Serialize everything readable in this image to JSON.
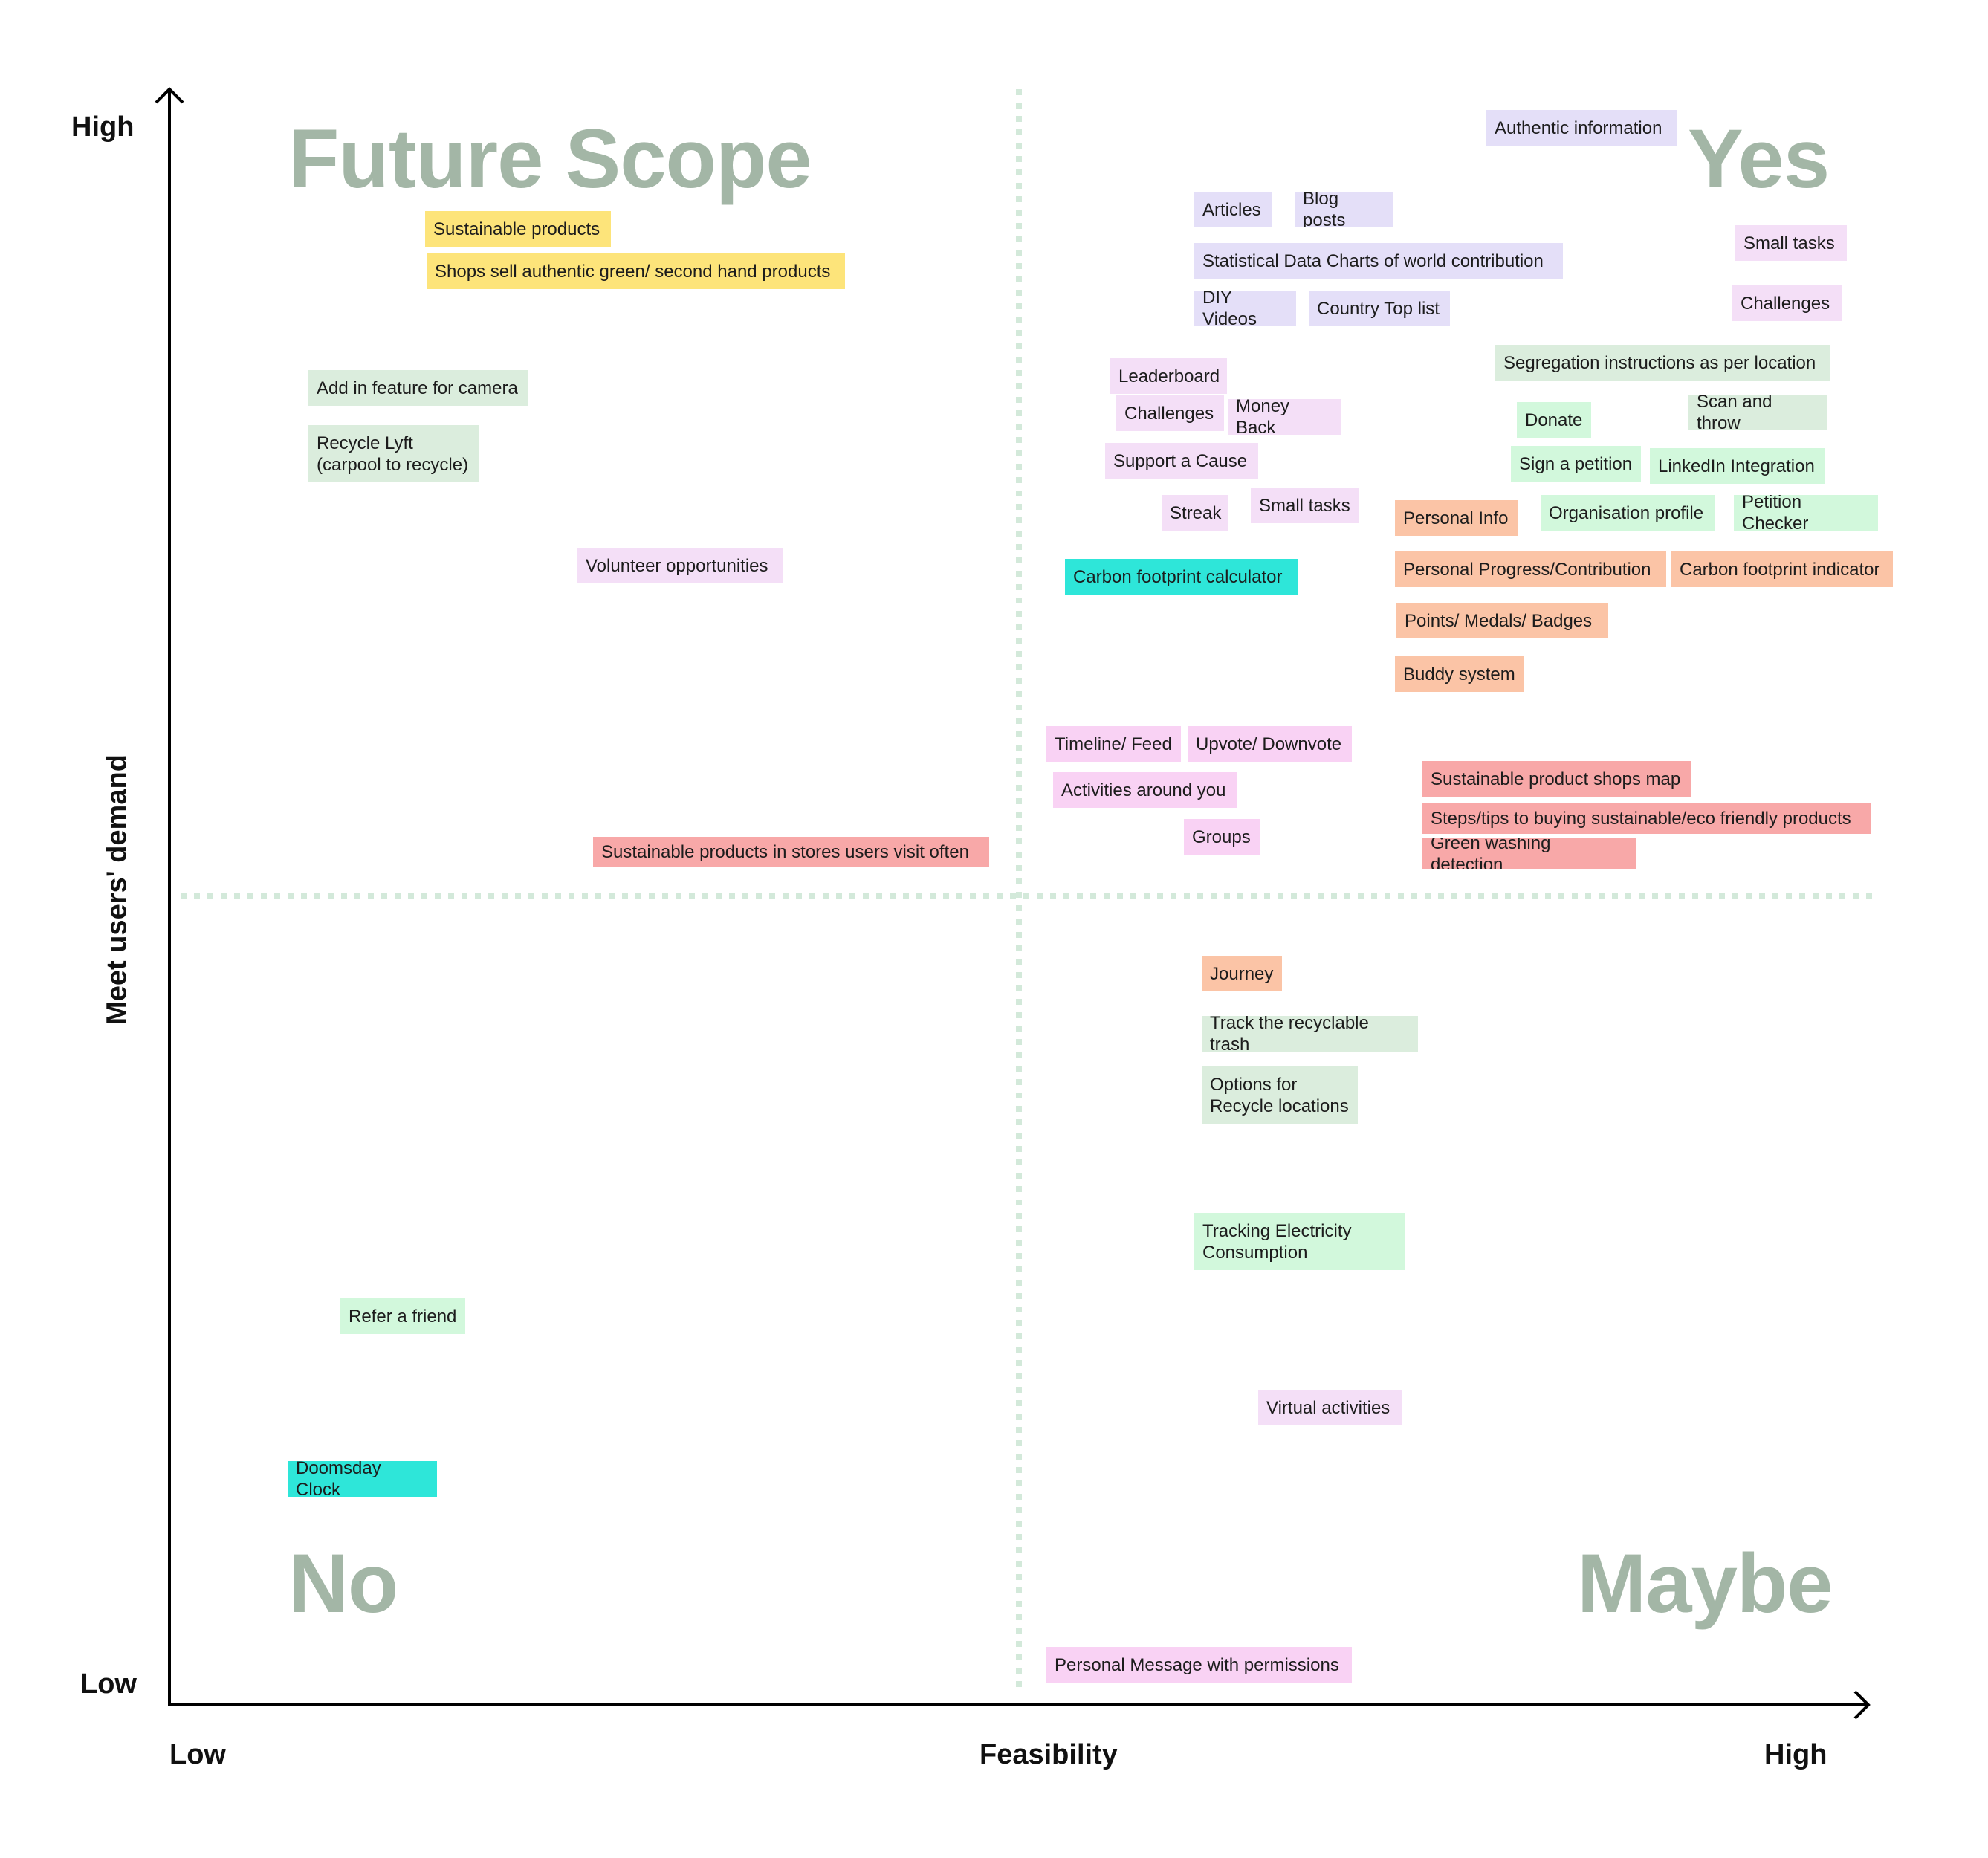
{
  "quadrants": {
    "top_left": "Future Scope",
    "top_right": "Yes",
    "bottom_left": "No",
    "bottom_right": "Maybe"
  },
  "axes": {
    "y_title": "Meet users' demand",
    "y_high": "High",
    "y_low": "Low",
    "x_title": "Feasibility",
    "x_low": "Low",
    "x_high": "High"
  },
  "colors": {
    "yellow": "#fde47a",
    "sage": "#dbeddd",
    "lavender": "#e4dff8",
    "lilac": "#f4dff7",
    "cyan": "#2ee6d9",
    "salmon": "#f8a8a8",
    "peach": "#fbc4a6",
    "mint": "#d2f8dc",
    "pink": "#f9d2f4",
    "quadrant_text": "#a3b6a6",
    "divider": "#d3e9da"
  },
  "notes": [
    {
      "text": "Sustainable products",
      "color": "yellow"
    },
    {
      "text": "Shops sell authentic green/ second hand products",
      "color": "yellow"
    },
    {
      "text": "Add in feature for camera",
      "color": "sage"
    },
    {
      "text": "Recycle Lyft\n(carpool to recycle)",
      "color": "sage"
    },
    {
      "text": "Volunteer opportunities",
      "color": "lilac"
    },
    {
      "text": "Sustainable  products in stores users visit often",
      "color": "salmon"
    },
    {
      "text": "Refer a friend",
      "color": "mint"
    },
    {
      "text": "Doomsday Clock",
      "color": "cyan"
    },
    {
      "text": "Authentic information",
      "color": "lavender"
    },
    {
      "text": "Articles",
      "color": "lavender"
    },
    {
      "text": "Blog posts",
      "color": "lavender"
    },
    {
      "text": "Statistical Data Charts of world contribution",
      "color": "lavender"
    },
    {
      "text": "DIY Videos",
      "color": "lavender"
    },
    {
      "text": "Country Top list",
      "color": "lavender"
    },
    {
      "text": "Small tasks",
      "color": "lilac"
    },
    {
      "text": "Challenges",
      "color": "lilac"
    },
    {
      "text": "Segregation instructions as per location",
      "color": "sage"
    },
    {
      "text": "Leaderboard",
      "color": "lilac"
    },
    {
      "text": "Challenges",
      "color": "lilac"
    },
    {
      "text": "Money Back",
      "color": "lilac"
    },
    {
      "text": "Support a Cause",
      "color": "lilac"
    },
    {
      "text": "Streak",
      "color": "lilac"
    },
    {
      "text": "Small tasks",
      "color": "lilac"
    },
    {
      "text": "Donate",
      "color": "mint"
    },
    {
      "text": "Scan and throw",
      "color": "sage"
    },
    {
      "text": "Sign a petition",
      "color": "mint"
    },
    {
      "text": "LinkedIn Integration",
      "color": "mint"
    },
    {
      "text": "Personal Info",
      "color": "peach"
    },
    {
      "text": "Organisation profile",
      "color": "mint"
    },
    {
      "text": "Petition Checker",
      "color": "mint"
    },
    {
      "text": "Carbon footprint calculator",
      "color": "cyan"
    },
    {
      "text": "Personal Progress/Contribution",
      "color": "peach"
    },
    {
      "text": "Carbon footprint indicator",
      "color": "peach"
    },
    {
      "text": "Points/ Medals/ Badges",
      "color": "peach"
    },
    {
      "text": "Buddy system",
      "color": "peach"
    },
    {
      "text": "Timeline/ Feed",
      "color": "pink"
    },
    {
      "text": "Upvote/ Downvote",
      "color": "pink"
    },
    {
      "text": "Activities around you",
      "color": "pink"
    },
    {
      "text": "Groups",
      "color": "pink"
    },
    {
      "text": "Sustainable product shops map",
      "color": "salmon"
    },
    {
      "text": "Steps/tips to buying sustainable/eco friendly products",
      "color": "salmon"
    },
    {
      "text": "Green washing detection",
      "color": "salmon"
    },
    {
      "text": "Journey",
      "color": "peach"
    },
    {
      "text": "Track the recyclable trash",
      "color": "sage"
    },
    {
      "text": "Options for\nRecycle locations",
      "color": "sage"
    },
    {
      "text": "Tracking Electricity\nConsumption",
      "color": "mint"
    },
    {
      "text": "Virtual activities",
      "color": "lilac"
    },
    {
      "text": "Personal Message with permissions",
      "color": "pink"
    }
  ]
}
